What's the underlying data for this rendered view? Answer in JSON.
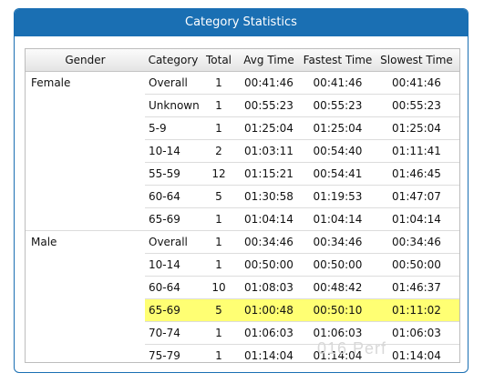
{
  "panel": {
    "title": "Category Statistics"
  },
  "table": {
    "headers": {
      "gender": "Gender",
      "category": "Category",
      "total": "Total",
      "avg": "Avg Time",
      "fastest": "Fastest Time",
      "slowest": "Slowest Time"
    },
    "rows": [
      {
        "gender": "Female",
        "category": "Overall",
        "total": "1",
        "avg": "00:41:46",
        "fastest": "00:41:46",
        "slowest": "00:41:46"
      },
      {
        "gender": "",
        "category": "Unknown",
        "total": "1",
        "avg": "00:55:23",
        "fastest": "00:55:23",
        "slowest": "00:55:23"
      },
      {
        "gender": "",
        "category": "5-9",
        "total": "1",
        "avg": "01:25:04",
        "fastest": "01:25:04",
        "slowest": "01:25:04"
      },
      {
        "gender": "",
        "category": "10-14",
        "total": "2",
        "avg": "01:03:11",
        "fastest": "00:54:40",
        "slowest": "01:11:41"
      },
      {
        "gender": "",
        "category": "55-59",
        "total": "12",
        "avg": "01:15:21",
        "fastest": "00:54:41",
        "slowest": "01:46:45"
      },
      {
        "gender": "",
        "category": "60-64",
        "total": "5",
        "avg": "01:30:58",
        "fastest": "01:19:53",
        "slowest": "01:47:07"
      },
      {
        "gender": "",
        "category": "65-69",
        "total": "1",
        "avg": "01:04:14",
        "fastest": "01:04:14",
        "slowest": "01:04:14"
      },
      {
        "gender": "Male",
        "category": "Overall",
        "total": "1",
        "avg": "00:34:46",
        "fastest": "00:34:46",
        "slowest": "00:34:46"
      },
      {
        "gender": "",
        "category": "10-14",
        "total": "1",
        "avg": "00:50:00",
        "fastest": "00:50:00",
        "slowest": "00:50:00"
      },
      {
        "gender": "",
        "category": "60-64",
        "total": "10",
        "avg": "01:08:03",
        "fastest": "00:48:42",
        "slowest": "01:46:37"
      },
      {
        "gender": "",
        "category": "65-69",
        "total": "5",
        "avg": "01:00:48",
        "fastest": "00:50:10",
        "slowest": "01:11:02"
      },
      {
        "gender": "",
        "category": "70-74",
        "total": "1",
        "avg": "01:06:03",
        "fastest": "01:06:03",
        "slowest": "01:06:03"
      },
      {
        "gender": "",
        "category": "75-79",
        "total": "1",
        "avg": "01:14:04",
        "fastest": "01:14:04",
        "slowest": "01:14:04"
      }
    ]
  },
  "highlight": {
    "row_label": "65-69",
    "color": "#ffff73"
  },
  "watermark": {
    "text": "016 Perf"
  },
  "colors": {
    "header_blue": "#1a6fb3",
    "highlight_yellow": "#ffff73"
  }
}
